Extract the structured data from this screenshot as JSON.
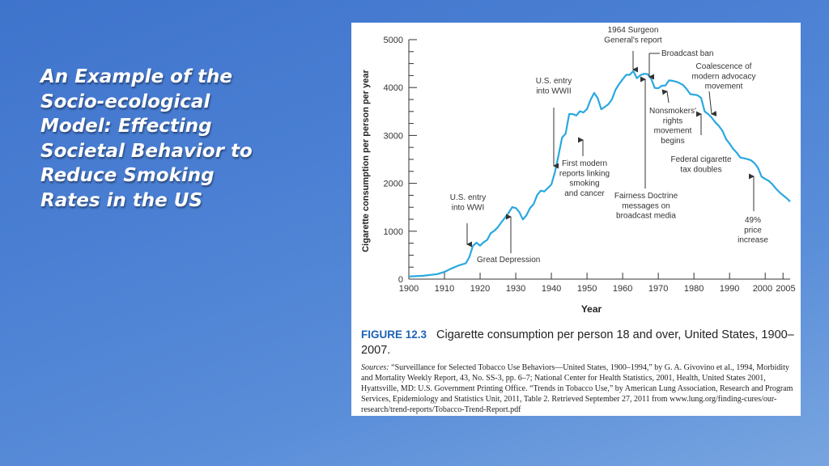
{
  "slide": {
    "title_lines": [
      "An Example of the",
      "Socio-ecological",
      "Model: Effecting",
      "Societal Behavior to",
      "Reduce Smoking",
      "Rates in the US"
    ]
  },
  "figure": {
    "label": "FIGURE 12.3",
    "title": "Cigarette consumption per person 18 and over, United States, 1900–2007.",
    "sources_label": "Sources:",
    "sources_text": "“Surveillance for Selected Tobacco Use Behaviors—United States, 1900–1994,” by G. A. Givovino et al., 1994, Morbidity and Mortality Weekly Report, 43, No. SS-3, pp. 6–7; National Center for Health Statistics, 2001, Health, United States 2001, Hyattsville, MD: U.S. Government Printing Office. “Trends in Tobacco Use,” by American Lung Association, Research and Program Services, Epidemiology and Statistics Unit, 2011, Table 2. Retrieved September 27, 2011 from www.lung.org/finding-cures/our-research/trend-reports/Tobacco-Trend-Report.pdf"
  },
  "colors": {
    "line": "#2aa8e0",
    "caption_label": "#1e63b6",
    "axis": "#333333"
  },
  "chart_data": {
    "type": "line",
    "xlabel": "Year",
    "ylabel": "Cigarette consumption per person per year",
    "xlim": [
      1900,
      2007
    ],
    "ylim": [
      0,
      5000
    ],
    "x_ticks": [
      1900,
      1910,
      1920,
      1930,
      1940,
      1950,
      1960,
      1970,
      1980,
      1990,
      2000,
      2005
    ],
    "y_ticks": [
      0,
      1000,
      2000,
      3000,
      4000,
      5000
    ],
    "grid": false,
    "series": [
      {
        "x": [
          1900,
          1904,
          1908,
          1910,
          1912,
          1914,
          1916,
          1917,
          1918,
          1919,
          1920,
          1921,
          1922,
          1923,
          1924,
          1925,
          1926,
          1927,
          1928,
          1929,
          1930,
          1931,
          1932,
          1933,
          1934,
          1935,
          1936,
          1937,
          1938,
          1939,
          1940,
          1941,
          1942,
          1943,
          1944,
          1945,
          1946,
          1947,
          1948,
          1949,
          1950,
          1951,
          1952,
          1953,
          1954,
          1955,
          1956,
          1957,
          1958,
          1959,
          1960,
          1961,
          1962,
          1963,
          1964,
          1965,
          1966,
          1967,
          1968,
          1969,
          1970,
          1971,
          1972,
          1973,
          1974,
          1975,
          1976,
          1977,
          1978,
          1979,
          1980,
          1981,
          1982,
          1983,
          1984,
          1985,
          1986,
          1987,
          1988,
          1989,
          1990,
          1991,
          1992,
          1993,
          1994,
          1995,
          1996,
          1997,
          1998,
          1999,
          2000,
          2001,
          2002,
          2003,
          2004,
          2005,
          2006,
          2007
        ],
        "y": [
          54,
          70,
          105,
          151,
          223,
          285,
          330,
          462,
          696,
          760,
          700,
          770,
          820,
          960,
          1010,
          1085,
          1190,
          1285,
          1385,
          1504,
          1485,
          1399,
          1245,
          1334,
          1483,
          1564,
          1754,
          1847,
          1830,
          1900,
          1976,
          2236,
          2585,
          2956,
          3039,
          3449,
          3446,
          3416,
          3505,
          3480,
          3552,
          3744,
          3886,
          3778,
          3546,
          3597,
          3650,
          3755,
          3953,
          4073,
          4171,
          4266,
          4266,
          4345,
          4194,
          4258,
          4287,
          4280,
          4186,
          3993,
          3985,
          4037,
          4043,
          4148,
          4141,
          4123,
          4092,
          4051,
          3967,
          3861,
          3851,
          3840,
          3783,
          3502,
          3446,
          3370,
          3274,
          3197,
          3096,
          2926,
          2828,
          2720,
          2640,
          2539,
          2524,
          2505,
          2482,
          2423,
          2320,
          2136,
          2092,
          2051,
          1982,
          1890,
          1814,
          1750,
          1691,
          1619
        ]
      }
    ],
    "annotations": [
      {
        "text_lines": [
          "1964 Surgeon",
          "General's report"
        ],
        "year": 1964
      },
      {
        "text_lines": [
          "Broadcast ban"
        ],
        "year": 1971
      },
      {
        "text_lines": [
          "Coalescence of",
          "modern advocacy",
          "movement"
        ],
        "year": 1983
      },
      {
        "text_lines": [
          "U.S. entry",
          "into WWII"
        ],
        "year": 1941
      },
      {
        "text_lines": [
          "Nonsmokers'",
          "rights",
          "movement",
          "begins"
        ],
        "year": 1971
      },
      {
        "text_lines": [
          "Federal cigarette",
          "tax doubles"
        ],
        "year": 1983
      },
      {
        "text_lines": [
          "First modern",
          "reports linking",
          "smoking",
          "and cancer"
        ],
        "year": 1953
      },
      {
        "text_lines": [
          "Fairness Doctrine",
          "messages on",
          "broadcast media"
        ],
        "year": 1967
      },
      {
        "text_lines": [
          "U.S. entry",
          "into WWI"
        ],
        "year": 1917
      },
      {
        "text_lines": [
          "49%",
          "price",
          "increase"
        ],
        "year": 1998
      },
      {
        "text_lines": [
          "Great Depression"
        ],
        "year": 1929
      }
    ]
  }
}
